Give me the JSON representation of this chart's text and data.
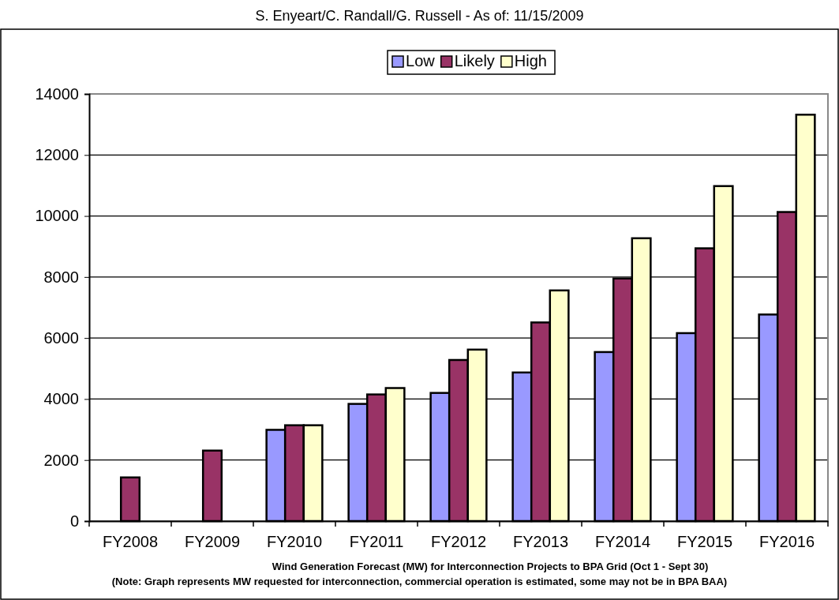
{
  "chart_data": {
    "type": "bar",
    "title": "S. Enyeart/C. Randall/G. Russell - As of: 11/15/2009",
    "xlabel": "Wind Generation Forecast (MW) for Interconnection Projects to BPA Grid (Oct 1 - Sept 30)",
    "annotations": [
      "(Note: Graph represents MW requested for interconnection, commercial operation is estimated, some may not be in BPA BAA)"
    ],
    "categories": [
      "FY2008",
      "FY2009",
      "FY2010",
      "FY2011",
      "FY2012",
      "FY2013",
      "FY2014",
      "FY2015",
      "FY2016"
    ],
    "series": [
      {
        "name": "Low",
        "color": "#9999ff",
        "values": [
          null,
          null,
          2990,
          3840,
          4200,
          4870,
          5540,
          6160,
          6770
        ]
      },
      {
        "name": "Likely",
        "color": "#993366",
        "values": [
          1430,
          2310,
          3140,
          4150,
          5280,
          6510,
          7950,
          8940,
          10130
        ]
      },
      {
        "name": "High",
        "color": "#ffffcc",
        "values": [
          null,
          null,
          3140,
          4360,
          5620,
          7560,
          9270,
          10980,
          13320
        ]
      }
    ],
    "ylim": [
      0,
      14000
    ],
    "yticks": [
      0,
      2000,
      4000,
      6000,
      8000,
      10000,
      12000,
      14000
    ],
    "grid": "y",
    "legend": "top"
  }
}
